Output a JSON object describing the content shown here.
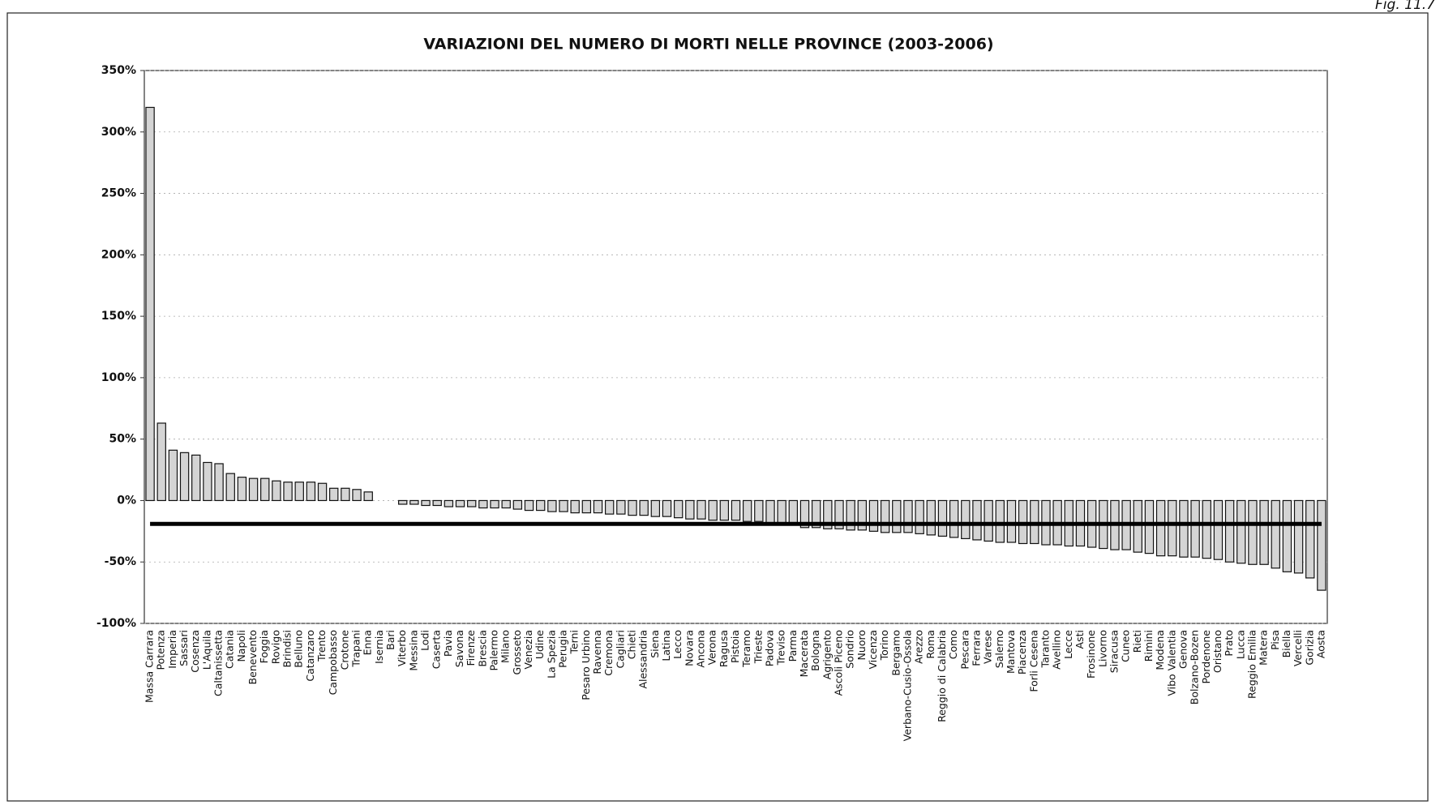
{
  "figure_label": "Fig. 11.7",
  "chart_data": {
    "type": "bar",
    "title": "VARIAZIONI DEL NUMERO DI MORTI NELLE PROVINCE (2003-2006)",
    "categories": [
      "Massa Carrara",
      "Potenza",
      "Imperia",
      "Sassari",
      "Cosenza",
      "L'Aquila",
      "Caltanissetta",
      "Catania",
      "Napoli",
      "Benevento",
      "Foggia",
      "Rovigo",
      "Brindisi",
      "Belluno",
      "Catanzaro",
      "Trento",
      "Campobasso",
      "Crotone",
      "Trapani",
      "Enna",
      "Isernia",
      "Bari",
      "Viterbo",
      "Messina",
      "Lodi",
      "Caserta",
      "Pavia",
      "Savona",
      "Firenze",
      "Brescia",
      "Palermo",
      "Milano",
      "Grosseto",
      "Venezia",
      "Udine",
      "La Spezia",
      "Perugia",
      "Terni",
      "Pesaro Urbino",
      "Ravenna",
      "Cremona",
      "Cagliari",
      "Chieti",
      "Alessandria",
      "Siena",
      "Latina",
      "Lecco",
      "Novara",
      "Ancona",
      "Verona",
      "Ragusa",
      "Pistoia",
      "Teramo",
      "Trieste",
      "Padova",
      "Treviso",
      "Parma",
      "Macerata",
      "Bologna",
      "Agrigento",
      "Ascoli Piceno",
      "Sondrio",
      "Nuoro",
      "Vicenza",
      "Torino",
      "Bergamo",
      "Verbano-Cusio-Ossola",
      "Arezzo",
      "Roma",
      "Reggio di Calabria",
      "Como",
      "Pescara",
      "Ferrara",
      "Varese",
      "Salerno",
      "Mantova",
      "Piacenza",
      "Forli Cesena",
      "Taranto",
      "Avellino",
      "Lecce",
      "Asti",
      "Frosinone",
      "Livorno",
      "Siracusa",
      "Cuneo",
      "Rieti",
      "Rimini",
      "Modena",
      "Vibo Valentia",
      "Genova",
      "Bolzano-Bozen",
      "Pordenone",
      "Oristano",
      "Prato",
      "Lucca",
      "Reggio Emilia",
      "Matera",
      "Pisa",
      "Biella",
      "Vercelli",
      "Gorizia",
      "Aosta"
    ],
    "values": [
      320,
      63,
      41,
      39,
      37,
      31,
      30,
      22,
      19,
      18,
      18,
      16,
      15,
      15,
      15,
      14,
      10,
      10,
      9,
      7,
      0,
      0,
      -3,
      -3,
      -4,
      -4,
      -5,
      -5,
      -5,
      -6,
      -6,
      -6,
      -7,
      -8,
      -8,
      -9,
      -9,
      -10,
      -10,
      -10,
      -11,
      -11,
      -12,
      -12,
      -13,
      -13,
      -14,
      -15,
      -15,
      -16,
      -16,
      -16,
      -17,
      -17,
      -18,
      -18,
      -19,
      -22,
      -22,
      -23,
      -23,
      -24,
      -24,
      -25,
      -26,
      -26,
      -26,
      -27,
      -28,
      -29,
      -30,
      -31,
      -32,
      -33,
      -34,
      -34,
      -35,
      -35,
      -36,
      -36,
      -37,
      -37,
      -38,
      -39,
      -40,
      -40,
      -42,
      -43,
      -45,
      -45,
      -46,
      -46,
      -47,
      -48,
      -50,
      -51,
      -52,
      -52,
      -55,
      -58,
      -59,
      -63,
      -73
    ],
    "color": "#d4d4d4",
    "reference_line": -19,
    "ylim": [
      -100,
      350
    ],
    "yticks": [
      {
        "value": -100,
        "label": "-100%"
      },
      {
        "value": -50,
        "label": "-50%"
      },
      {
        "value": 0,
        "label": "0%"
      },
      {
        "value": 50,
        "label": "50%"
      },
      {
        "value": 100,
        "label": "100%"
      },
      {
        "value": 150,
        "label": "150%"
      },
      {
        "value": 200,
        "label": "200%"
      },
      {
        "value": 250,
        "label": "250%"
      },
      {
        "value": 300,
        "label": "300%"
      },
      {
        "value": 350,
        "label": "350%"
      }
    ],
    "grid": true
  }
}
